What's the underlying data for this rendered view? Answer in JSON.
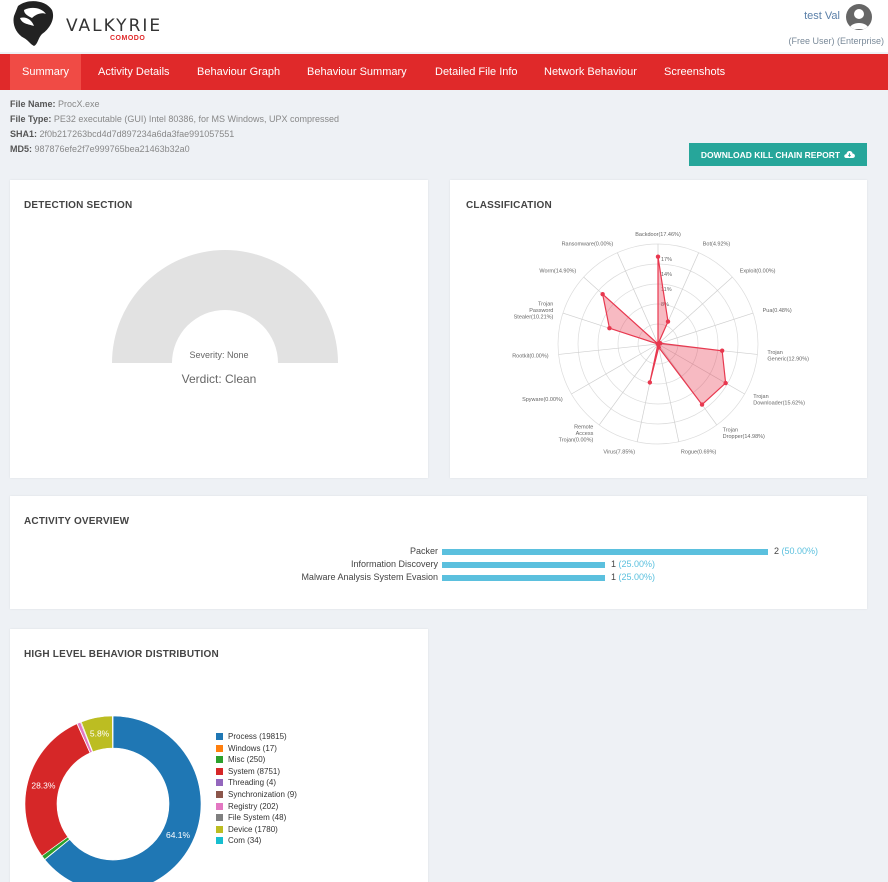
{
  "header": {
    "logo_title": "VALKYRIE",
    "logo_subtitle": "COMODO",
    "user_name": "test Val",
    "user_role": "(Free User) (Enterprise)"
  },
  "nav": {
    "tabs": [
      {
        "label": "Summary",
        "active": true
      },
      {
        "label": "Activity Details",
        "active": false
      },
      {
        "label": "Behaviour Graph",
        "active": false
      },
      {
        "label": "Behaviour Summary",
        "active": false
      },
      {
        "label": "Detailed File Info",
        "active": false
      },
      {
        "label": "Network Behaviour",
        "active": false
      },
      {
        "label": "Screenshots",
        "active": false
      }
    ]
  },
  "file_info": {
    "name_label": "File Name:",
    "name_value": "ProcX.exe",
    "type_label": "File Type:",
    "type_value": "PE32 executable (GUI) Intel 80386, for MS Windows, UPX compressed",
    "sha1_label": "SHA1:",
    "sha1_value": "2f0b217263bcd4d7d897234a6da3fae991057551",
    "md5_label": "MD5:",
    "md5_value": "987876efe2f7e999765bea21463b32a0"
  },
  "download_button": {
    "label": "DOWNLOAD KILL CHAIN REPORT",
    "icon": "cloud-download-icon"
  },
  "detection": {
    "title": "DETECTION SECTION",
    "severity": "Severity: None",
    "verdict": "Verdict: Clean"
  },
  "classification": {
    "title": "CLASSIFICATION",
    "chart_data": {
      "type": "radar",
      "axes": [
        {
          "label": "Backdoor(17.46%)",
          "value": 17.46
        },
        {
          "label": "Bot(4.92%)",
          "value": 4.92
        },
        {
          "label": "Exploit(0.00%)",
          "value": 0.0
        },
        {
          "label": "Pua(0.48%)",
          "value": 0.48
        },
        {
          "label": "Trojan Generic(12.90%)",
          "value": 12.9
        },
        {
          "label": "Trojan Downloader(15.62%)",
          "value": 15.62
        },
        {
          "label": "Trojan Dropper(14.98%)",
          "value": 14.98
        },
        {
          "label": "Rogue(0.69%)",
          "value": 0.69
        },
        {
          "label": "Virus(7.85%)",
          "value": 7.85
        },
        {
          "label": "Remote Access Trojan(0.00%)",
          "value": 0.0
        },
        {
          "label": "Spyware(0.00%)",
          "value": 0.0
        },
        {
          "label": "Rootkit(0.00%)",
          "value": 0.0
        },
        {
          "label": "Trojan Password Stealer(10.21%)",
          "value": 10.21
        },
        {
          "label": "Worm(14.90%)",
          "value": 14.9
        },
        {
          "label": "Ransomware(0.00%)",
          "value": 0.0
        }
      ],
      "rmax": 20,
      "ring_labels": [
        "17%",
        "14%",
        "11%",
        "8%"
      ],
      "fill_color": "#e8384f",
      "grid": true
    }
  },
  "activity_overview": {
    "title": "ACTIVITY OVERVIEW",
    "chart_data": {
      "type": "bar",
      "orientation": "horizontal",
      "categories": [
        "Packer",
        "Information Discovery",
        "Malware Analysis System Evasion"
      ],
      "values": [
        2,
        1,
        1
      ],
      "percentages": [
        "(50.00%)",
        "(25.00%)",
        "(25.00%)"
      ],
      "color": "#5bc0de"
    }
  },
  "behavior_distribution": {
    "title": "HIGH LEVEL BEHAVIOR DISTRIBUTION",
    "chart_data": {
      "type": "pie",
      "donut": true,
      "slices": [
        {
          "label": "Process (19815)",
          "value": 19815,
          "color": "#1f77b4"
        },
        {
          "label": "Windows (17)",
          "value": 17,
          "color": "#ff7f0e"
        },
        {
          "label": "Misc (250)",
          "value": 250,
          "color": "#2ca02c"
        },
        {
          "label": "System (8751)",
          "value": 8751,
          "color": "#d62728"
        },
        {
          "label": "Threading (4)",
          "value": 4,
          "color": "#9467bd"
        },
        {
          "label": "Synchronization (9)",
          "value": 9,
          "color": "#8c564b"
        },
        {
          "label": "Registry (202)",
          "value": 202,
          "color": "#e377c2"
        },
        {
          "label": "File System (48)",
          "value": 48,
          "color": "#7f7f7f"
        },
        {
          "label": "Device (1780)",
          "value": 1780,
          "color": "#bcbd22"
        },
        {
          "label": "Com (34)",
          "value": 34,
          "color": "#17becf"
        }
      ],
      "slice_labels": [
        {
          "label": "64.1%"
        },
        {
          "label": "28.3%"
        },
        {
          "label": "5.8%"
        }
      ]
    }
  },
  "colors": {
    "brand_red": "#e0292a",
    "teal": "#26a69a",
    "bar_blue": "#5bc0de"
  }
}
